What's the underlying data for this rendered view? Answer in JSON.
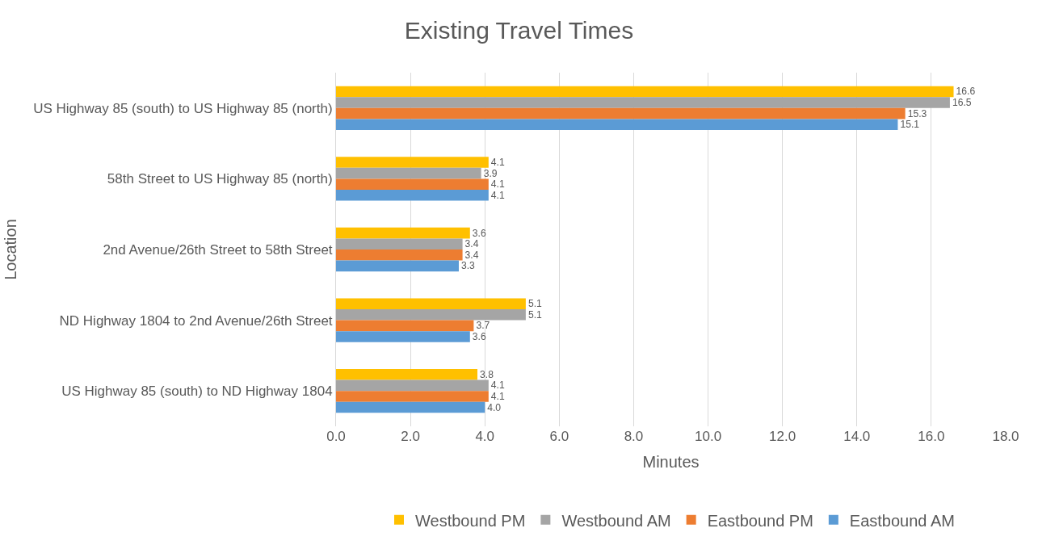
{
  "chart_data": {
    "type": "bar",
    "orientation": "horizontal",
    "title": "Existing Travel Times",
    "xlabel": "Minutes",
    "ylabel": "Location",
    "categories": [
      "US Highway 85 (south) to US Highway 85 (north)",
      "58th Street to US Highway 85 (north)",
      "2nd Avenue/26th Street to 58th Street",
      "ND Highway 1804 to 2nd Avenue/26th Street",
      "US Highway 85 (south) to ND Highway 1804"
    ],
    "series": [
      {
        "name": "Westbound PM",
        "color": "#ffc000",
        "values": [
          16.6,
          4.1,
          3.6,
          5.1,
          3.8
        ],
        "value_labels": [
          "16.6",
          "4.1",
          "3.6",
          "5.1",
          "3.8"
        ]
      },
      {
        "name": "Westbound AM",
        "color": "#a5a5a5",
        "values": [
          16.5,
          3.9,
          3.4,
          5.1,
          4.1
        ],
        "value_labels": [
          "16.5",
          "3.9",
          "3.4",
          "5.1",
          "4.1"
        ]
      },
      {
        "name": "Eastbound PM",
        "color": "#ed7d31",
        "values": [
          15.3,
          4.1,
          3.4,
          3.7,
          4.1
        ],
        "value_labels": [
          "15.3",
          "4.1",
          "3.4",
          "3.7",
          "4.1"
        ]
      },
      {
        "name": "Eastbound AM",
        "color": "#5b9bd5",
        "values": [
          15.1,
          4.1,
          3.3,
          3.6,
          4.0
        ],
        "value_labels": [
          "15.1",
          "4.1",
          "3.3",
          "3.6",
          "4.0"
        ]
      }
    ],
    "xlim": [
      0,
      18
    ],
    "xticks": [
      {
        "value": 0,
        "label": "0.0"
      },
      {
        "value": 2,
        "label": "2.0"
      },
      {
        "value": 4,
        "label": "4.0"
      },
      {
        "value": 6,
        "label": "6.0"
      },
      {
        "value": 8,
        "label": "8.0"
      },
      {
        "value": 10,
        "label": "10.0"
      },
      {
        "value": 12,
        "label": "12.0"
      },
      {
        "value": 14,
        "label": "14.0"
      },
      {
        "value": 16,
        "label": "16.0"
      },
      {
        "value": 18,
        "label": "18.0"
      }
    ],
    "grid": "x",
    "legend": "bottom"
  }
}
